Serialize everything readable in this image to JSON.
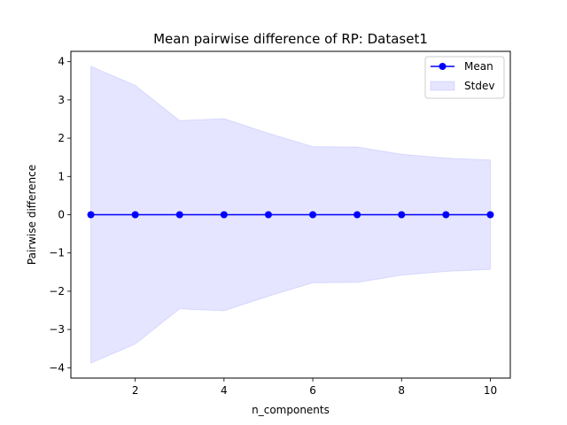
{
  "chart_data": {
    "type": "line",
    "title": "Mean pairwise difference of RP: Dataset1",
    "xlabel": "n_components",
    "ylabel": "Pairwise difference",
    "x": [
      1,
      2,
      3,
      4,
      5,
      6,
      7,
      8,
      9,
      10
    ],
    "series": [
      {
        "name": "Mean",
        "values": [
          0,
          0,
          0,
          0,
          0,
          0,
          0,
          0,
          0,
          0
        ],
        "color": "#0000ff",
        "marker": "circle"
      }
    ],
    "band": {
      "name": "Stdev",
      "upper": [
        3.88,
        3.38,
        2.46,
        2.51,
        2.13,
        1.78,
        1.77,
        1.58,
        1.48,
        1.43
      ],
      "lower": [
        -3.88,
        -3.38,
        -2.46,
        -2.51,
        -2.13,
        -1.78,
        -1.77,
        -1.58,
        -1.48,
        -1.43
      ],
      "color": "#0000ff",
      "opacity": 0.1
    },
    "xticks": [
      2,
      4,
      6,
      8,
      10
    ],
    "yticks": [
      -4,
      -3,
      -2,
      -1,
      0,
      1,
      2,
      3,
      4
    ],
    "xlim": [
      0.55,
      10.45
    ],
    "ylim": [
      -4.27,
      4.27
    ],
    "grid": false,
    "legend_position": "top-right"
  }
}
